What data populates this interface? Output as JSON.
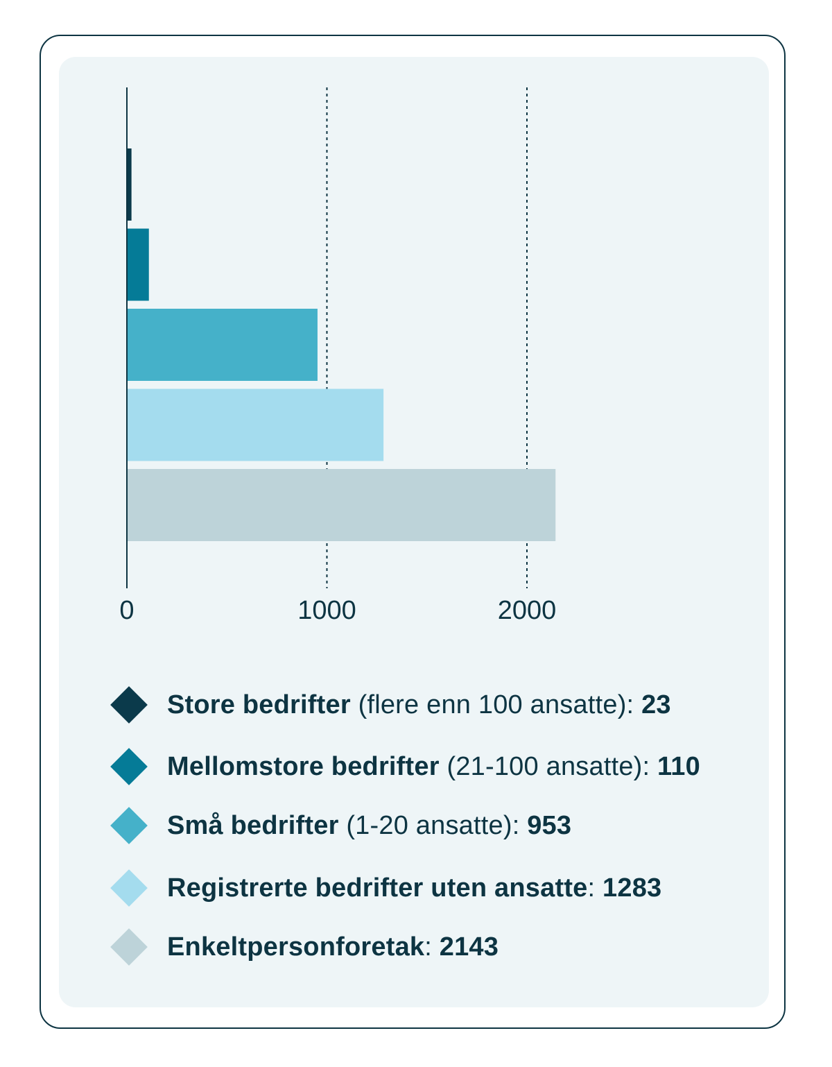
{
  "chart_data": {
    "type": "bar",
    "orientation": "horizontal",
    "xlim": [
      0,
      2300
    ],
    "x_ticks": [
      "0",
      "1000",
      "2000"
    ],
    "grid": "vertical-dotted",
    "categories": [
      "Store bedrifter",
      "Mellomstore bedrifter",
      "Små bedrifter",
      "Registrerte bedrifter uten ansatte",
      "Enkeltpersonforetak"
    ],
    "values": [
      23,
      110,
      953,
      1283,
      2143
    ],
    "colors": [
      "#0b3a4b",
      "#057b97",
      "#45b1c9",
      "#a4dcee",
      "#bdd3d9"
    ]
  },
  "legend": {
    "items": [
      {
        "name": "Store bedrifter",
        "note": " (flere enn 100 ansatte)",
        "colon": ": ",
        "value": "23",
        "color": "#0b3a4b"
      },
      {
        "name": "Mellomstore bedrifter",
        "note": " (21-100 ansatte)",
        "colon": ": ",
        "value": "110",
        "color": "#057b97"
      },
      {
        "name": "Små bedrifter",
        "note": " (1-20 ansatte)",
        "colon": ": ",
        "value": "953",
        "color": "#45b1c9"
      },
      {
        "name": "Registrerte bedrifter uten ansatte",
        "note": "",
        "colon": ": ",
        "value": "1283",
        "color": "#a4dcee"
      },
      {
        "name": "Enkeltpersonforetak",
        "note": "",
        "colon": ": ",
        "value": "2143",
        "color": "#bdd3d9"
      }
    ]
  }
}
